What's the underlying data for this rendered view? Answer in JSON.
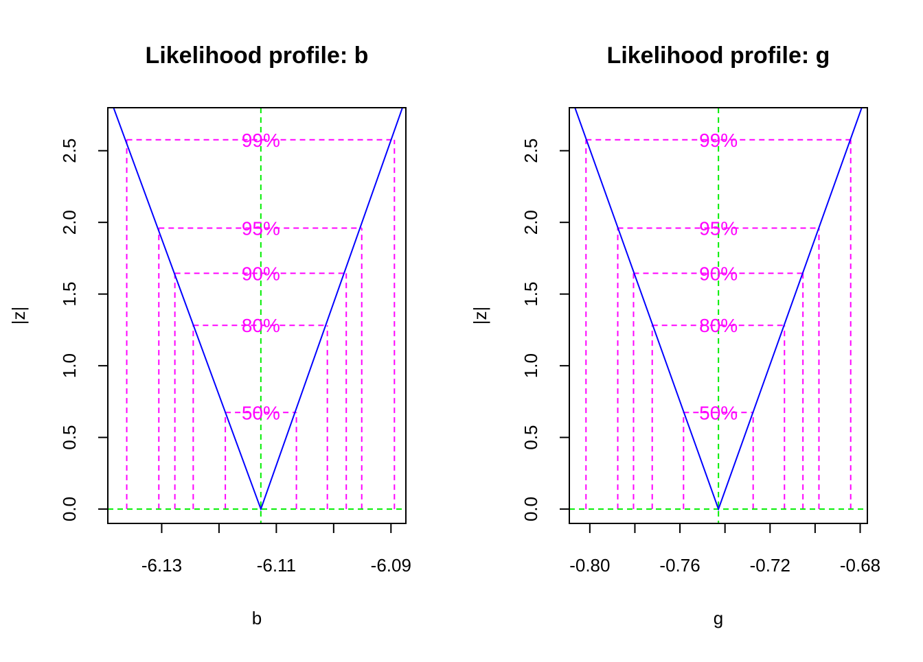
{
  "colors": {
    "profile": "#0000FF",
    "levels": "#FF00FF",
    "estimate": "#00EE00",
    "axes": "#000000",
    "background": "#FFFFFF"
  },
  "chart_data": [
    {
      "type": "line",
      "title": "Likelihood profile: b",
      "xlabel": "b",
      "ylabel": "|z|",
      "xlim": [
        -6.1394,
        -6.0874
      ],
      "ylim": [
        -0.1,
        2.8
      ],
      "xticks": [
        -6.13,
        -6.12,
        -6.11,
        -6.1,
        -6.09
      ],
      "xtick_labels": [
        "-6.13",
        "",
        "-6.11",
        "",
        "-6.09"
      ],
      "yticks": [
        0.0,
        0.5,
        1.0,
        1.5,
        2.0,
        2.5
      ],
      "ytick_labels": [
        "0.0",
        "0.5",
        "1.0",
        "1.5",
        "2.0",
        "2.5"
      ],
      "estimate": -6.1127,
      "series": [
        {
          "name": "profile",
          "x": [
            -6.1384,
            -6.1127,
            -6.088
          ],
          "y": [
            2.8,
            0.0,
            2.8
          ]
        }
      ],
      "levels": [
        {
          "label": "50%",
          "z": 0.674,
          "lower": -6.1189,
          "upper": -6.1065
        },
        {
          "label": "80%",
          "z": 1.282,
          "lower": -6.1245,
          "upper": -6.1011
        },
        {
          "label": "90%",
          "z": 1.645,
          "lower": -6.1277,
          "upper": -6.0978
        },
        {
          "label": "95%",
          "z": 1.96,
          "lower": -6.1305,
          "upper": -6.0951
        },
        {
          "label": "99%",
          "z": 2.576,
          "lower": -6.1361,
          "upper": -6.0894
        }
      ],
      "grid": false
    },
    {
      "type": "line",
      "title": "Likelihood profile: g",
      "xlabel": "g",
      "ylabel": "|z|",
      "xlim": [
        -0.8091,
        -0.6768
      ],
      "ylim": [
        -0.1,
        2.8
      ],
      "xticks": [
        -0.8,
        -0.78,
        -0.76,
        -0.74,
        -0.72,
        -0.7,
        -0.68
      ],
      "xtick_labels": [
        "-0.80",
        "",
        "-0.76",
        "",
        "-0.72",
        "",
        "-0.68"
      ],
      "yticks": [
        0.0,
        0.5,
        1.0,
        1.5,
        2.0,
        2.5
      ],
      "ytick_labels": [
        "0.0",
        "0.5",
        "1.0",
        "1.5",
        "2.0",
        "2.5"
      ],
      "estimate": -0.7429,
      "series": [
        {
          "name": "profile",
          "x": [
            -0.8066,
            -0.7429,
            -0.6793
          ],
          "y": [
            2.8,
            0.0,
            2.8
          ]
        }
      ],
      "levels": [
        {
          "label": "50%",
          "z": 0.674,
          "lower": -0.7584,
          "upper": -0.7275
        },
        {
          "label": "80%",
          "z": 1.282,
          "lower": -0.7723,
          "upper": -0.7136
        },
        {
          "label": "90%",
          "z": 1.645,
          "lower": -0.7806,
          "upper": -0.7054
        },
        {
          "label": "95%",
          "z": 1.96,
          "lower": -0.7876,
          "upper": -0.6983
        },
        {
          "label": "99%",
          "z": 2.576,
          "lower": -0.8017,
          "upper": -0.6842
        }
      ],
      "grid": false
    }
  ]
}
